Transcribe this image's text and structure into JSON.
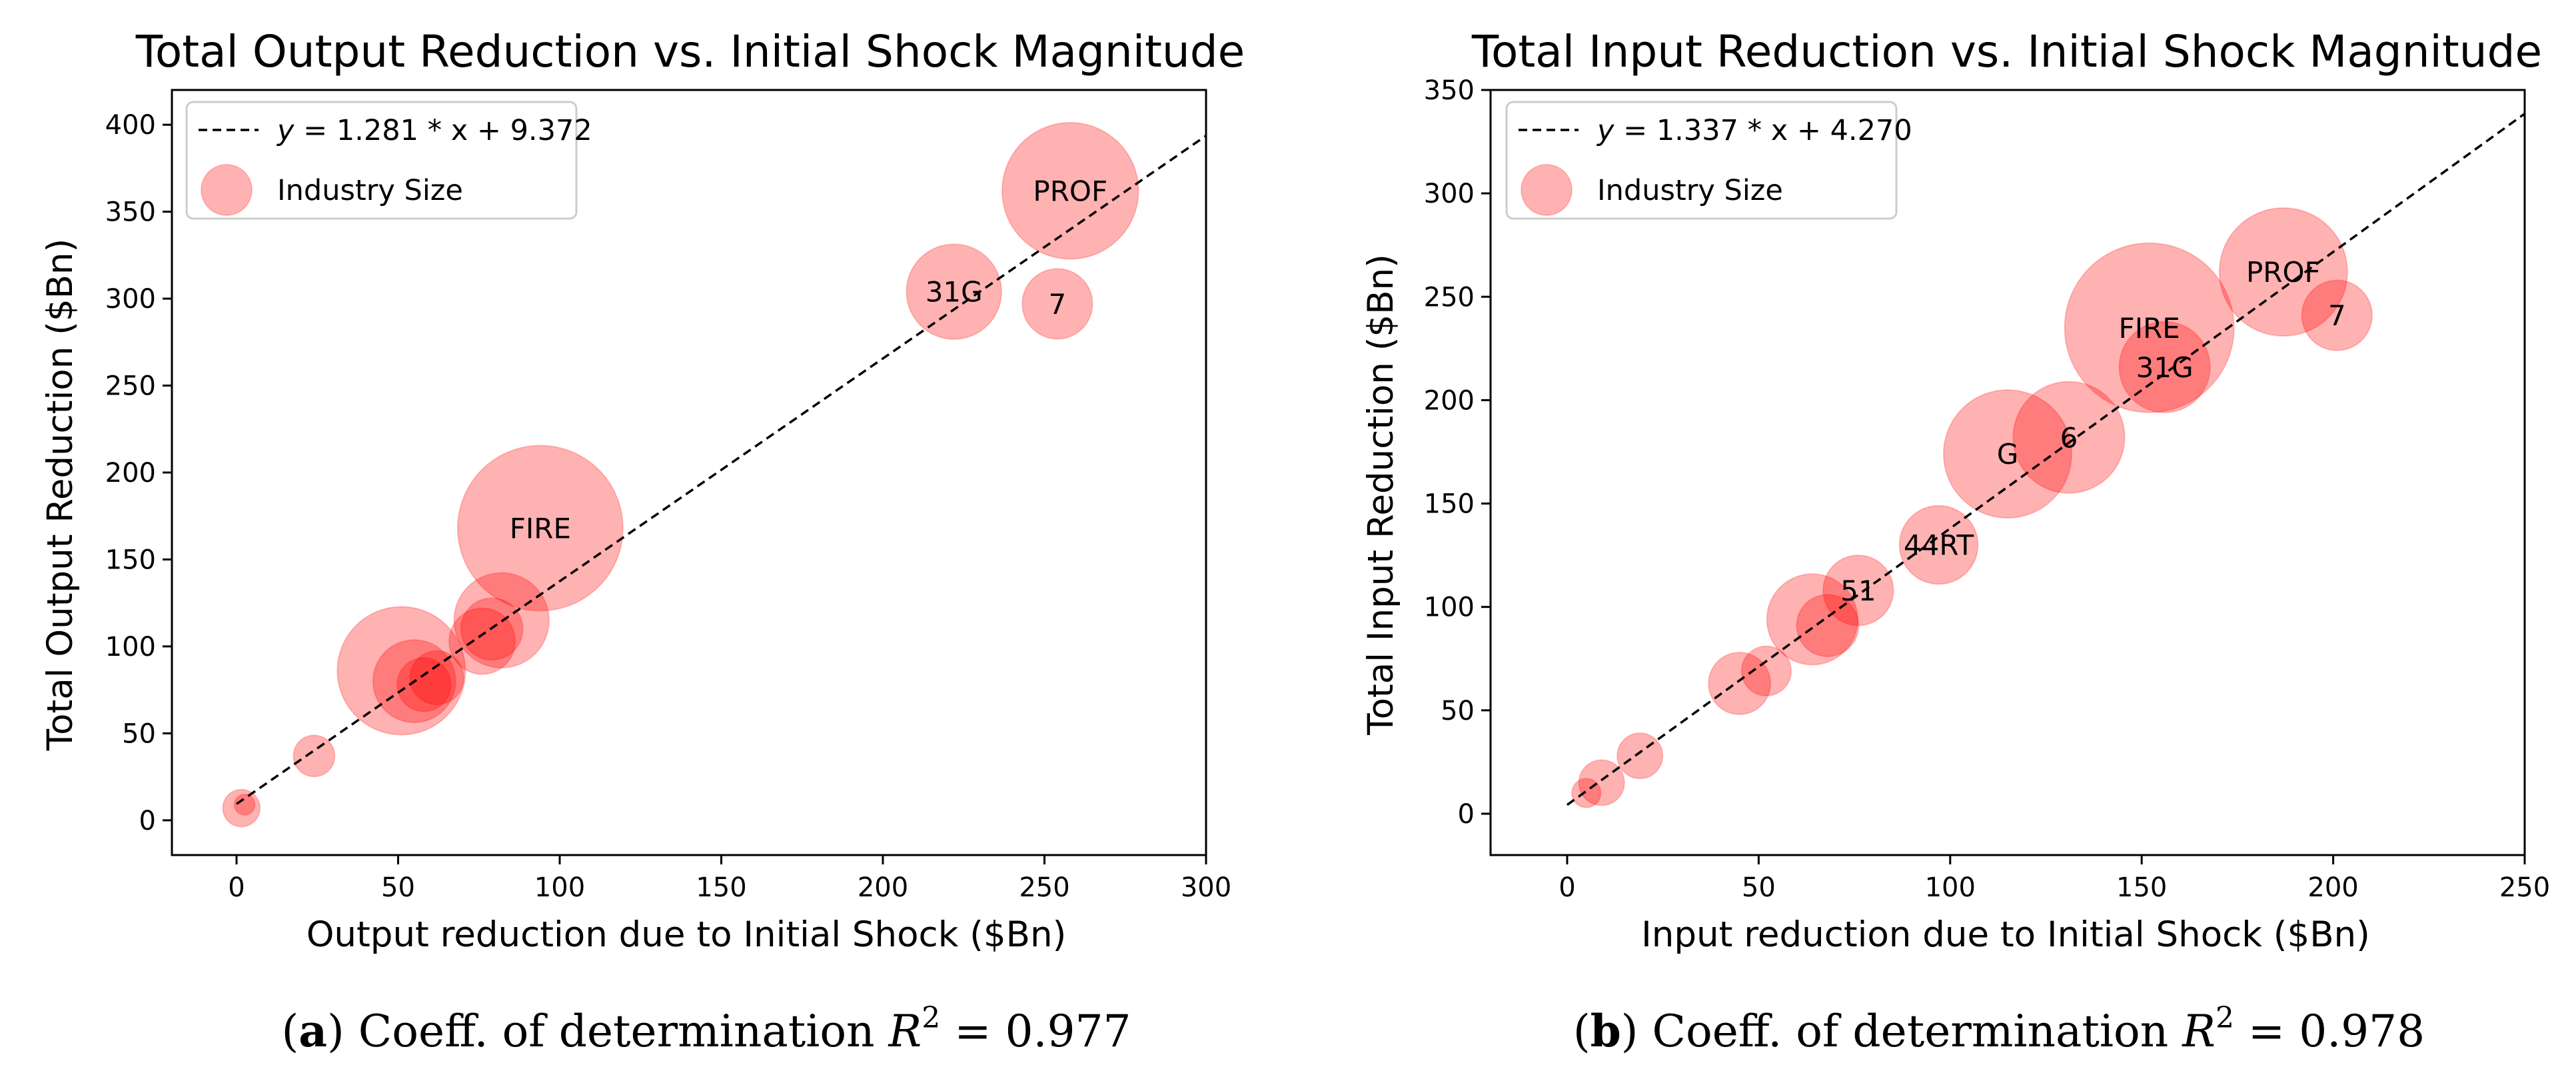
{
  "panels": [
    {
      "chart_data": {
        "type": "scatter",
        "title": "Total Output Reduction vs. Initial Shock Magnitude",
        "xlabel": "Output reduction due to Initial Shock ($Bn)",
        "ylabel": "Total Output Reduction ($Bn)",
        "xlim": [
          -20,
          300
        ],
        "ylim": [
          -20,
          420
        ],
        "xticks": [
          0,
          50,
          100,
          150,
          200,
          250,
          300
        ],
        "yticks": [
          0,
          50,
          100,
          150,
          200,
          250,
          300,
          350,
          400
        ],
        "grid": false,
        "legend_position": "top-left",
        "fit_line": {
          "slope": 1.281,
          "intercept": 9.372,
          "x_range": [
            0,
            300
          ],
          "legend_prefix": "y = ",
          "legend_expr": "1.281 * x + 9.372"
        },
        "series": [
          {
            "name": "Industry Size",
            "color": "#ff0000",
            "points": [
              {
                "x": 1.5,
                "y": 7,
                "size": 18,
                "label": ""
              },
              {
                "x": 2.5,
                "y": 9,
                "size": 10,
                "label": ""
              },
              {
                "x": 24,
                "y": 37,
                "size": 20,
                "label": ""
              },
              {
                "x": 51,
                "y": 86,
                "size": 62,
                "label": ""
              },
              {
                "x": 55,
                "y": 80,
                "size": 40,
                "label": ""
              },
              {
                "x": 58,
                "y": 78,
                "size": 26,
                "label": ""
              },
              {
                "x": 62,
                "y": 82,
                "size": 26,
                "label": ""
              },
              {
                "x": 76,
                "y": 103,
                "size": 32,
                "label": ""
              },
              {
                "x": 79,
                "y": 110,
                "size": 30,
                "label": ""
              },
              {
                "x": 82,
                "y": 115,
                "size": 46,
                "label": ""
              },
              {
                "x": 94,
                "y": 168,
                "size": 80,
                "label": "FIRE"
              },
              {
                "x": 222,
                "y": 304,
                "size": 46,
                "label": "31G"
              },
              {
                "x": 254,
                "y": 297,
                "size": 34,
                "label": "7"
              },
              {
                "x": 258,
                "y": 362,
                "size": 66,
                "label": "PROF"
              }
            ]
          }
        ]
      },
      "caption": {
        "letter": "a",
        "text": " Coeff. of determination ",
        "r": "R",
        "sup": "2",
        "eq": " = 0.977"
      }
    },
    {
      "chart_data": {
        "type": "scatter",
        "title": "Total Input Reduction vs. Initial Shock Magnitude",
        "xlabel": "Input reduction due to Initial Shock ($Bn)",
        "ylabel": "Total Input Reduction ($Bn)",
        "xlim": [
          -20,
          250
        ],
        "ylim": [
          -20,
          350
        ],
        "xticks": [
          0,
          50,
          100,
          150,
          200,
          250
        ],
        "yticks": [
          0,
          50,
          100,
          150,
          200,
          250,
          300,
          350
        ],
        "grid": false,
        "legend_position": "top-left",
        "fit_line": {
          "slope": 1.337,
          "intercept": 4.27,
          "x_range": [
            0,
            250
          ],
          "legend_prefix": "y = ",
          "legend_expr": "1.337 * x + 4.270"
        },
        "series": [
          {
            "name": "Industry Size",
            "color": "#ff0000",
            "points": [
              {
                "x": 5,
                "y": 10,
                "size": 14,
                "label": ""
              },
              {
                "x": 9,
                "y": 15,
                "size": 22,
                "label": ""
              },
              {
                "x": 19,
                "y": 28,
                "size": 22,
                "label": ""
              },
              {
                "x": 45,
                "y": 63,
                "size": 30,
                "label": ""
              },
              {
                "x": 52,
                "y": 69,
                "size": 24,
                "label": ""
              },
              {
                "x": 64,
                "y": 94,
                "size": 44,
                "label": ""
              },
              {
                "x": 68,
                "y": 91,
                "size": 30,
                "label": ""
              },
              {
                "x": 76,
                "y": 108,
                "size": 34,
                "label": "51"
              },
              {
                "x": 97,
                "y": 130,
                "size": 38,
                "label": "44RT"
              },
              {
                "x": 115,
                "y": 174,
                "size": 62,
                "label": "G"
              },
              {
                "x": 131,
                "y": 182,
                "size": 54,
                "label": "6"
              },
              {
                "x": 152,
                "y": 235,
                "size": 82,
                "label": "FIRE"
              },
              {
                "x": 156,
                "y": 216,
                "size": 44,
                "label": "31G"
              },
              {
                "x": 201,
                "y": 241,
                "size": 34,
                "label": "7"
              },
              {
                "x": 187,
                "y": 262,
                "size": 62,
                "label": "PROF"
              }
            ]
          }
        ]
      },
      "caption": {
        "letter": "b",
        "text": " Coeff. of determination ",
        "r": "R",
        "sup": "2",
        "eq": " = 0.978"
      }
    }
  ]
}
